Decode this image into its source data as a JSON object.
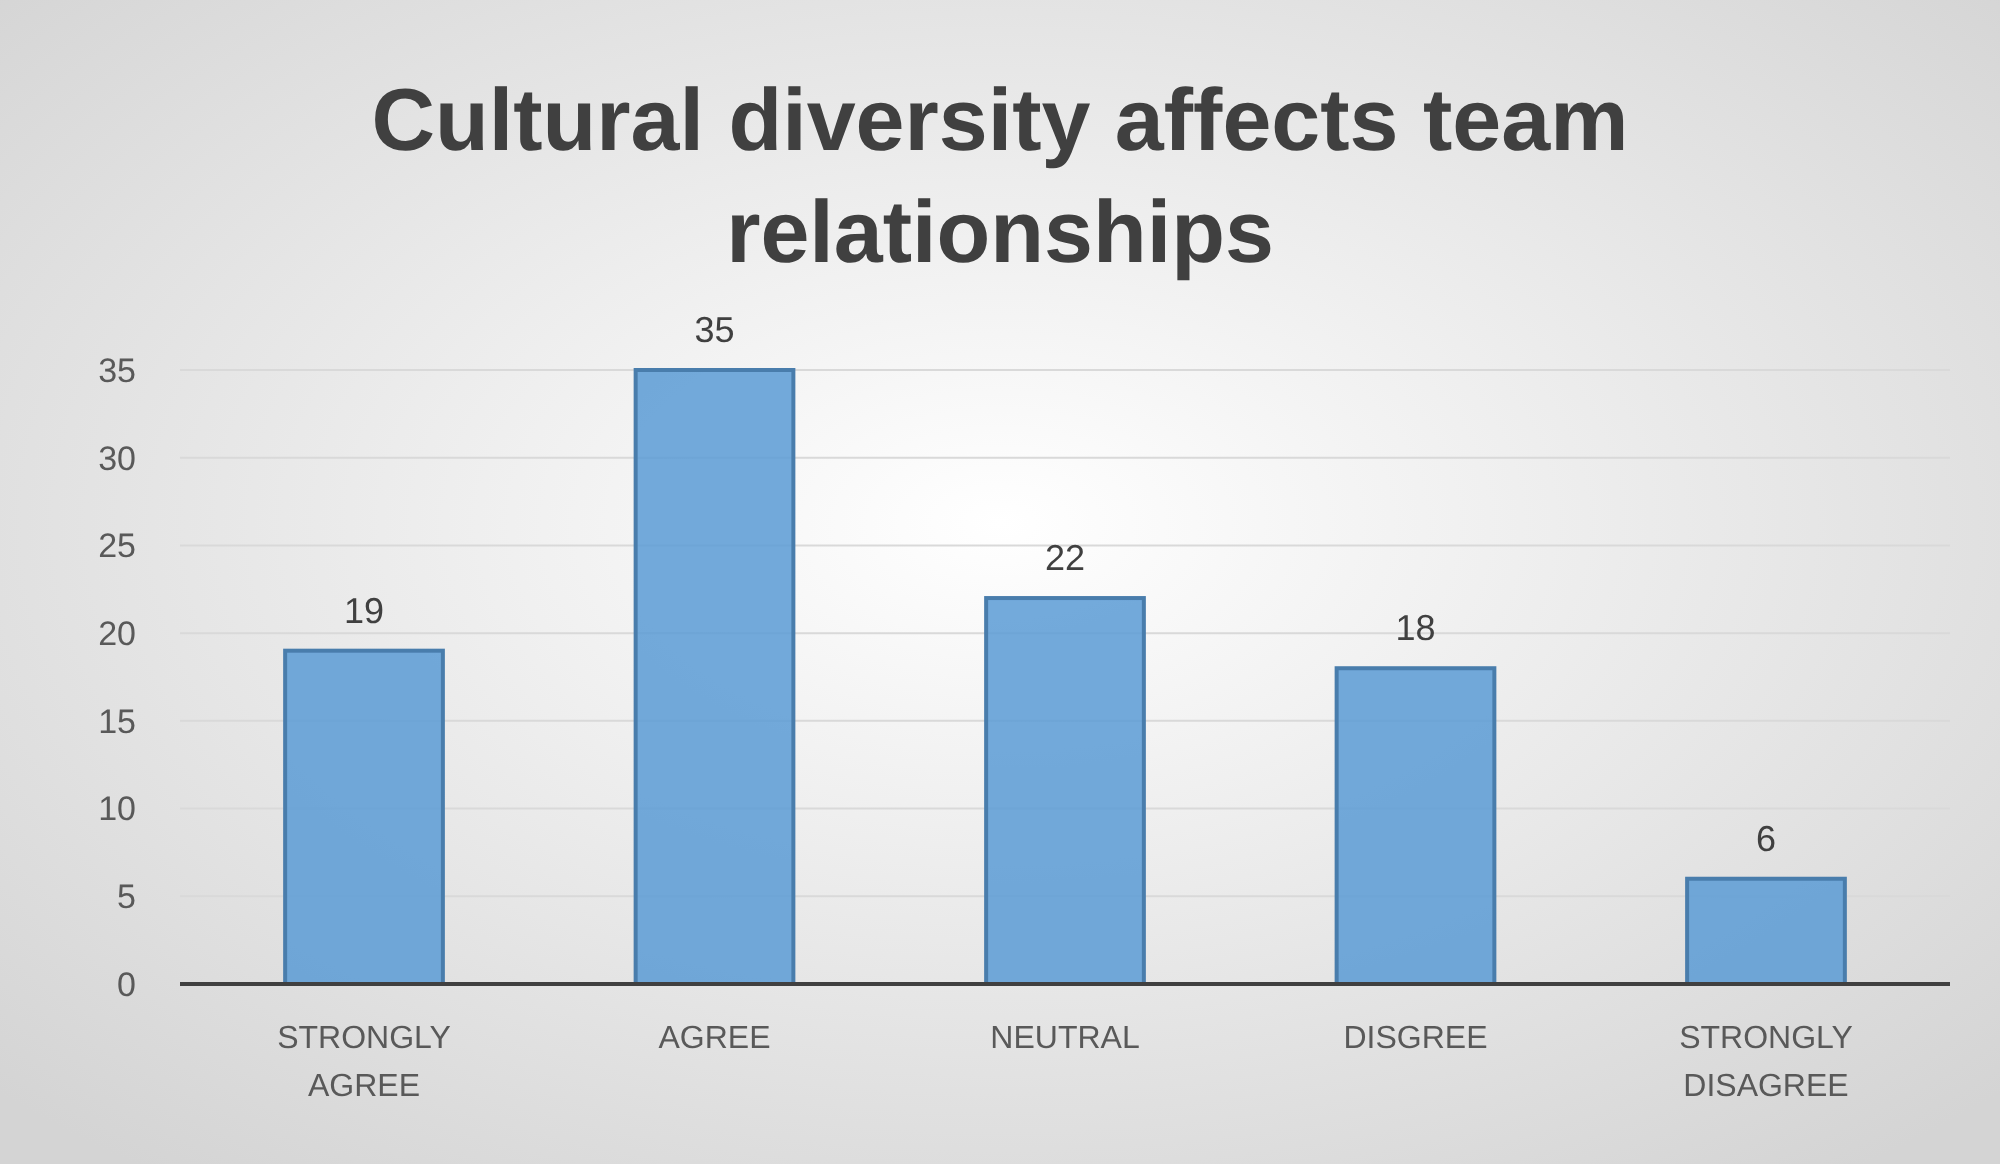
{
  "chart_data": {
    "type": "bar",
    "title": "Cultural diversity affects team relationships",
    "categories": [
      "STRONGLY AGREE",
      "AGREE",
      "NEUTRAL",
      "DISGREE",
      "STRONGLY DISAGREE"
    ],
    "values": [
      19,
      35,
      22,
      18,
      6
    ],
    "color": "#5b9bd5",
    "ylim": [
      0,
      35
    ],
    "yticks": [
      0,
      5,
      10,
      15,
      20,
      25,
      30,
      35
    ],
    "grid": "y",
    "data_labels": true
  }
}
